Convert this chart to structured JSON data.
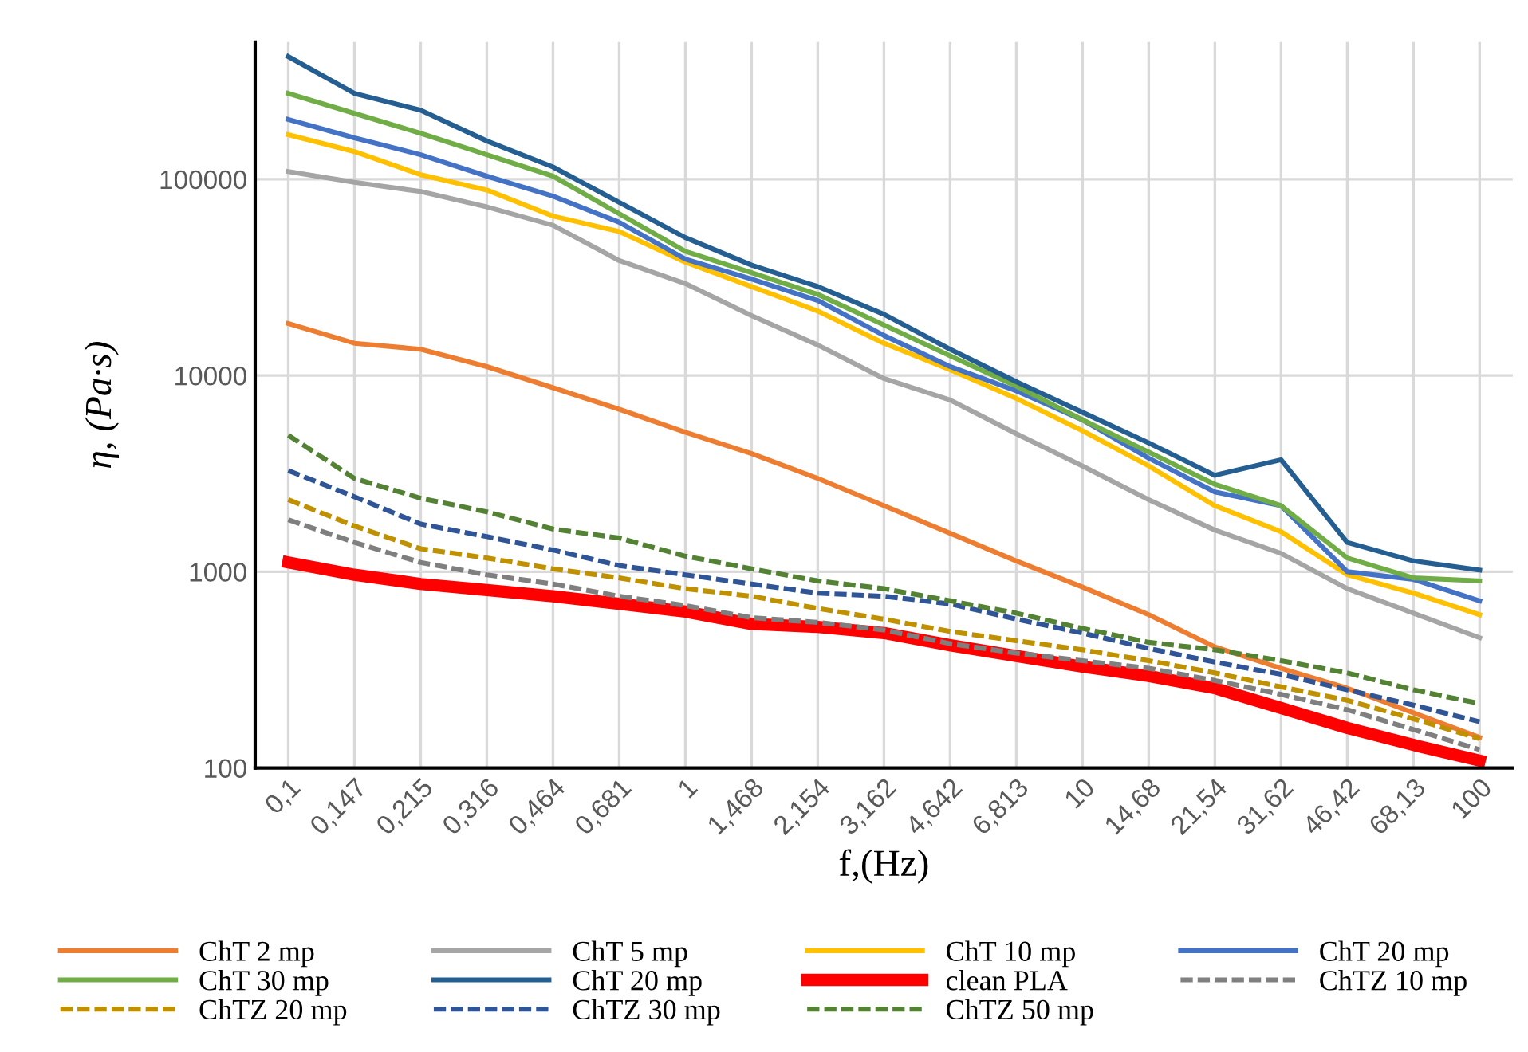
{
  "chart_data": {
    "type": "line",
    "xlabel": "f,(Hz)",
    "ylabel": "η, (Pa·s)",
    "categories": [
      "0,1",
      "0,147",
      "0,215",
      "0,316",
      "0,464",
      "0,681",
      "1",
      "1,468",
      "2,154",
      "3,162",
      "4,642",
      "6,813",
      "10",
      "14,68",
      "21,54",
      "31,62",
      "46,42",
      "68,13",
      "100"
    ],
    "log": "y",
    "ylim": [
      100,
      500000
    ],
    "yticks": [
      100,
      1000,
      10000,
      100000
    ],
    "grid": true,
    "legend": "bottom",
    "marker": "none",
    "series": [
      {
        "name": "ChT 2 mp",
        "color": "#ed7d31",
        "line_style": "solid",
        "values": [
          18400,
          14600,
          13600,
          11100,
          8660,
          6730,
          5140,
          4000,
          2990,
          2170,
          1570,
          1135,
          835,
          604,
          414,
          322,
          255,
          191,
          143
        ]
      },
      {
        "name": "ChT 5 mp",
        "color": "#a5a5a5",
        "line_style": "solid",
        "values": [
          109400,
          96500,
          86600,
          72300,
          58300,
          38500,
          29400,
          20200,
          14300,
          9650,
          7500,
          5050,
          3460,
          2330,
          1630,
          1240,
          820,
          615,
          461
        ]
      },
      {
        "name": "ChT 10 mp",
        "color": "#ffc000",
        "line_style": "solid",
        "values": [
          168600,
          138300,
          105500,
          88100,
          64900,
          54200,
          37800,
          28400,
          21300,
          14600,
          10700,
          7640,
          5230,
          3460,
          2170,
          1600,
          965,
          778,
          604
        ]
      },
      {
        "name": "ChT 20 mp",
        "color": "#4472c4",
        "line_style": "solid",
        "values": [
          201800,
          162500,
          133400,
          103700,
          82000,
          60400,
          39200,
          31000,
          24100,
          16000,
          11100,
          8350,
          5940,
          3790,
          2550,
          2170,
          1000,
          914,
          711
        ]
      },
      {
        "name": "ChT 30 mp",
        "color": "#70ad47",
        "line_style": "solid",
        "values": [
          274000,
          216700,
          171500,
          133400,
          103700,
          66700,
          42900,
          33400,
          25900,
          18100,
          12600,
          8820,
          5940,
          4070,
          2790,
          2170,
          1175,
          930,
          898
        ]
      },
      {
        "name": "ChT 20 mp",
        "color": "#255e91",
        "line_style": "solid",
        "values": [
          421700,
          273800,
          224900,
          156700,
          115500,
          76300,
          50400,
          36500,
          28400,
          20500,
          13600,
          9300,
          6490,
          4530,
          3100,
          3720,
          1410,
          1135,
          1020
        ]
      },
      {
        "name": "clean PLA",
        "color": "#ff0000",
        "line_style": "solid",
        "values": [
          1115,
          965,
          866,
          806,
          750,
          686,
          626,
          542,
          523,
          487,
          422,
          372,
          328,
          294,
          255,
          202,
          160,
          131,
          109
        ]
      },
      {
        "name": "ChTZ 10 mp",
        "color": "#7f7f7f",
        "line_style": "dashed",
        "values": [
          1840,
          1410,
          1115,
          965,
          866,
          750,
          673,
          583,
          552,
          505,
          430,
          385,
          352,
          322,
          279,
          237,
          198,
          157,
          124
        ]
      },
      {
        "name": "ChTZ 20 mp",
        "color": "#bf9000",
        "line_style": "dashed",
        "values": [
          2330,
          1710,
          1310,
          1175,
          1035,
          930,
          820,
          750,
          650,
          573,
          496,
          445,
          400,
          352,
          305,
          259,
          221,
          178,
          141
        ]
      },
      {
        "name": "ChTZ 30 mp",
        "color": "#2f5597",
        "line_style": "dashed",
        "values": [
          3280,
          2410,
          1750,
          1510,
          1290,
          1075,
          965,
          866,
          778,
          750,
          686,
          573,
          487,
          407,
          346,
          300,
          250,
          209,
          172
        ]
      },
      {
        "name": "ChTZ 50 mp",
        "color": "#548235",
        "line_style": "dashed",
        "values": [
          4960,
          2990,
          2370,
          2020,
          1650,
          1485,
          1200,
          1035,
          898,
          820,
          711,
          615,
          514,
          437,
          400,
          352,
          305,
          250,
          213
        ]
      }
    ]
  }
}
